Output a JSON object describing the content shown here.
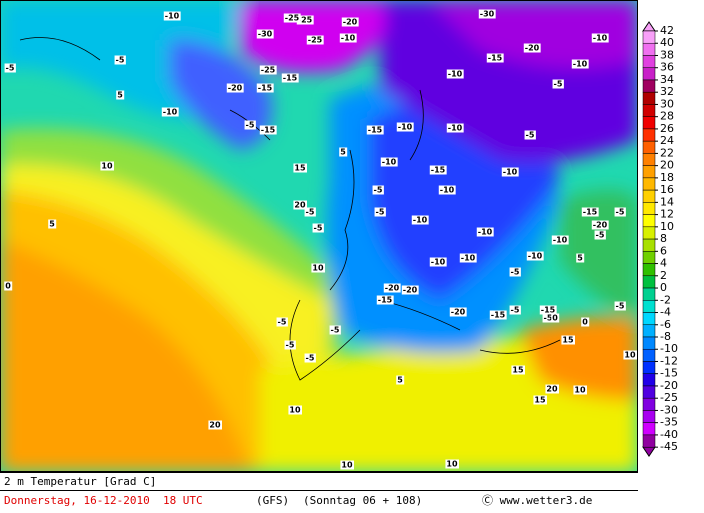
{
  "map": {
    "title": "2 m Temperatur [Grad C]",
    "date": "Donnerstag, 16-12-2010  18 UTC",
    "model": "(GFS)",
    "forecast": "(Sonntag 06 + 108)",
    "credit": "Ⓒ www.wetter3.de",
    "labels": [
      "-10",
      "-25",
      "-20",
      "-30",
      "-25",
      "-10",
      "-20",
      "-15",
      "-25",
      "-10",
      "-5",
      "-5",
      "-25",
      "-15",
      "-20",
      "-15",
      "-10",
      "-10",
      "-5",
      "-10",
      "-15",
      "-10",
      "-10",
      "-5",
      "-10",
      "-15",
      "-10",
      "-5",
      "-10",
      "-10",
      "-20",
      "-5",
      "-5",
      "-10",
      "-5",
      "-15",
      "-10",
      "-5",
      "-10",
      "-5",
      "-5",
      "-20",
      "-15",
      "-10",
      "-5",
      "-5",
      "-5",
      "-5",
      "-20",
      "-15",
      "-10",
      "-5",
      "5",
      "5",
      "10",
      "15",
      "20",
      "10",
      "5",
      "0",
      "0",
      "5",
      "10",
      "15",
      "20",
      "20",
      "10",
      "15",
      "10",
      "10",
      "15",
      "-5",
      "-5",
      "-20",
      "-30",
      "-15",
      "-15",
      "0",
      "-5",
      "5",
      "10"
    ]
  },
  "colorbar": {
    "ticks": [
      42,
      40,
      38,
      36,
      34,
      32,
      30,
      28,
      26,
      24,
      22,
      20,
      18,
      16,
      14,
      12,
      10,
      8,
      6,
      4,
      2,
      0,
      -2,
      -4,
      -6,
      -8,
      -10,
      -12,
      -15,
      -20,
      -25,
      -30,
      -35,
      -40,
      -45
    ],
    "colors": [
      "#f8a0f8",
      "#f070f0",
      "#e040e0",
      "#c820c8",
      "#a00060",
      "#b00000",
      "#d00000",
      "#f00000",
      "#ff3000",
      "#ff6000",
      "#ff8000",
      "#ffa000",
      "#ffb800",
      "#ffd000",
      "#ffe800",
      "#ffff00",
      "#d8f000",
      "#a8e000",
      "#70d000",
      "#30c000",
      "#00c040",
      "#00d090",
      "#00e0d0",
      "#00d8ff",
      "#00b0ff",
      "#0088ff",
      "#0060ff",
      "#0030ff",
      "#2000e8",
      "#5000e0",
      "#8000e0",
      "#a800f0",
      "#d000ff",
      "#9000a0"
    ]
  }
}
